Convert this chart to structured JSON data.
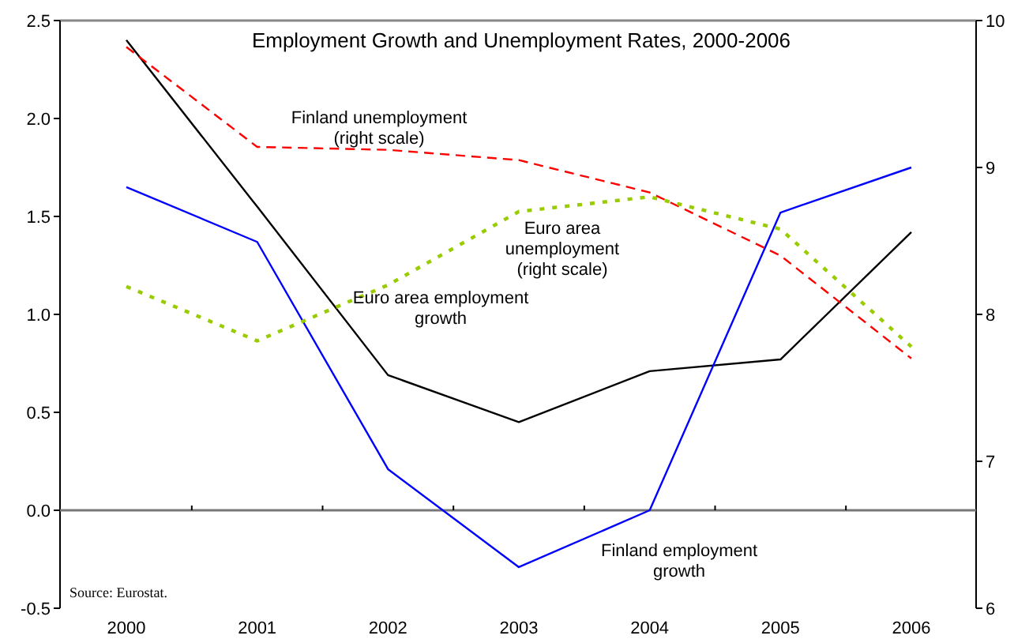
{
  "chart_data": {
    "type": "line",
    "title": "Employment Growth and Unemployment Rates, 2000-2006",
    "categories": [
      "2000",
      "2001",
      "2002",
      "2003",
      "2004",
      "2005",
      "2006"
    ],
    "series": [
      {
        "name": "Euro area employment growth",
        "color": "#000000",
        "line_style": "solid",
        "values": [
          2.4,
          1.55,
          0.69,
          0.45,
          0.71,
          0.77,
          1.42
        ]
      },
      {
        "name": "Finland employment growth",
        "color": "#0000ff",
        "line_style": "solid",
        "values": [
          1.65,
          1.37,
          0.21,
          -0.29,
          0.0,
          1.52,
          1.75
        ]
      },
      {
        "name": "Finland unemployment (right scale)",
        "color": "#ff0000",
        "line_style": "dashed",
        "axis": "y2",
        "values": [
          9.82,
          9.14,
          9.12,
          9.05,
          8.83,
          8.4,
          7.7
        ]
      },
      {
        "name": "Euro area unemployment (right scale)",
        "color": "#99cc00",
        "line_style": "dotted",
        "axis": "y2",
        "values": [
          8.19,
          7.82,
          8.2,
          8.7,
          8.8,
          8.58,
          7.78
        ]
      }
    ],
    "ylim": [
      -0.5,
      2.5
    ],
    "yticks": [
      {
        "value": 2.5,
        "label": "2.5"
      },
      {
        "value": 2,
        "label": "2.0"
      },
      {
        "value": 1.5,
        "label": "1.5"
      },
      {
        "value": 1,
        "label": "1.0"
      },
      {
        "value": 0.5,
        "label": "0.5"
      },
      {
        "value": 0,
        "label": "0.0"
      },
      {
        "value": -0.5,
        "label": "-0.5"
      }
    ],
    "y2lim": [
      6,
      10
    ],
    "y2ticks": [
      6,
      7,
      8,
      9,
      10
    ],
    "marker": "none",
    "annotations": [
      "Source: Eurostat."
    ]
  }
}
